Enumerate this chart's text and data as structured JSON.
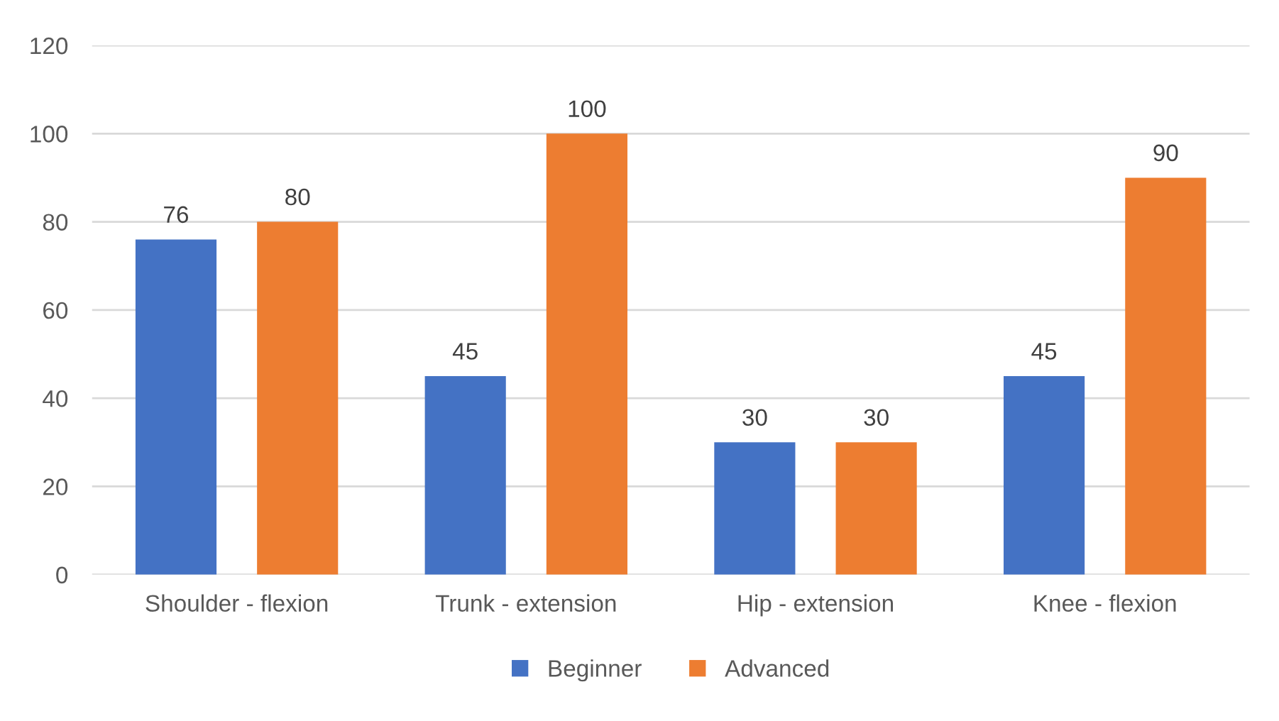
{
  "chart_data": {
    "type": "bar",
    "categories": [
      "Shoulder - flexion",
      "Trunk - extension",
      "Hip - extension",
      "Knee - flexion"
    ],
    "series": [
      {
        "name": "Beginner",
        "color": "#4472c4",
        "values": [
          76,
          45,
          30,
          45
        ]
      },
      {
        "name": "Advanced",
        "color": "#ed7d31",
        "values": [
          80,
          100,
          30,
          90
        ]
      }
    ],
    "ylim": [
      0,
      120
    ],
    "yticks": [
      0,
      20,
      40,
      60,
      80,
      100,
      120
    ],
    "grid": "y",
    "legend": "bottom",
    "data_labels": true
  }
}
